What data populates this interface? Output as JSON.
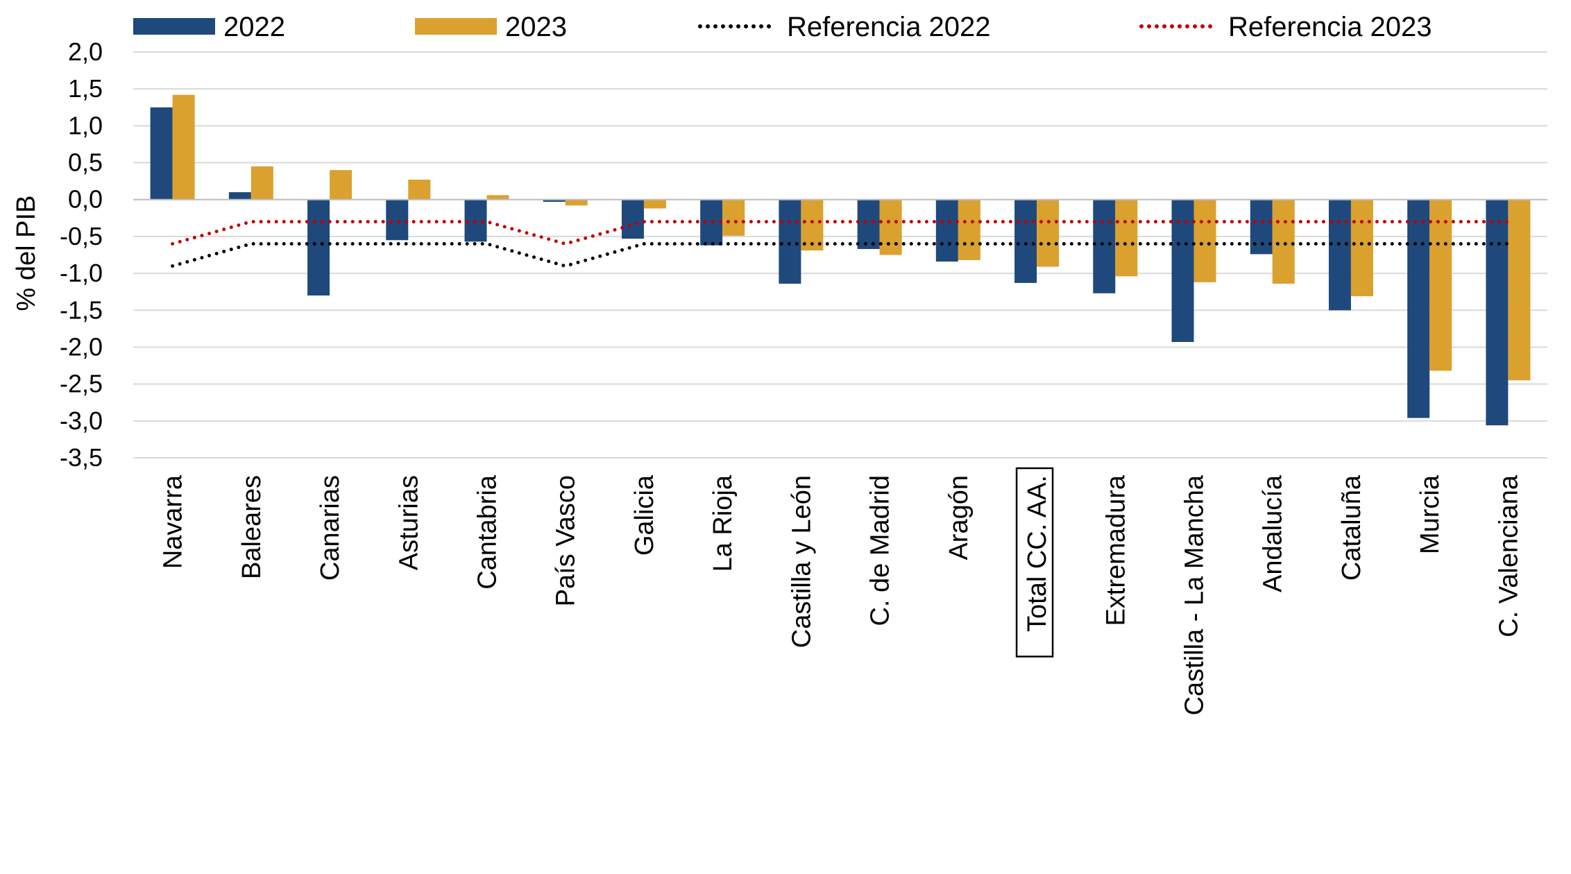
{
  "chart_data": {
    "type": "bar",
    "ylabel": "% del PIB",
    "ylim": [
      -3.5,
      2.0
    ],
    "ytick_step": 0.5,
    "yticks": [
      "2,0",
      "1,5",
      "1,0",
      "0,5",
      "0,0",
      "-0,5",
      "-1,0",
      "-1,5",
      "-2,0",
      "-2,5",
      "-3,0",
      "-3,5"
    ],
    "grid": true,
    "legend_position": "top",
    "categories": [
      "Navarra",
      "Baleares",
      "Canarias",
      "Asturias",
      "Cantabria",
      "País Vasco",
      "Galicia",
      "La Rioja",
      "Castilla y León",
      "C. de Madrid",
      "Aragón",
      "Total CC. AA.",
      "Extremadura",
      "Castilla - La Mancha",
      "Andalucía",
      "Cataluña",
      "Murcia",
      "C. Valenciana"
    ],
    "highlighted_category": "Total CC. AA.",
    "series": [
      {
        "name": "2022",
        "kind": "bar",
        "color": "#1f497d",
        "values": [
          1.25,
          0.1,
          -1.3,
          -0.55,
          -0.57,
          -0.03,
          -0.53,
          -0.62,
          -1.14,
          -0.67,
          -0.84,
          -1.13,
          -1.27,
          -1.93,
          -0.74,
          -1.5,
          -2.96,
          -3.06
        ]
      },
      {
        "name": "2023",
        "kind": "bar",
        "color": "#daa12f",
        "values": [
          1.42,
          0.45,
          0.4,
          0.27,
          0.06,
          -0.08,
          -0.12,
          -0.49,
          -0.69,
          -0.75,
          -0.82,
          -0.91,
          -1.04,
          -1.12,
          -1.14,
          -1.31,
          -2.32,
          -2.45
        ]
      },
      {
        "name": "Referencia 2022",
        "kind": "line",
        "style": "dotted",
        "color": "#000000",
        "values": [
          -0.9,
          -0.6,
          -0.6,
          -0.6,
          -0.6,
          -0.9,
          -0.6,
          -0.6,
          -0.6,
          -0.6,
          -0.6,
          -0.6,
          -0.6,
          -0.6,
          -0.6,
          -0.6,
          -0.6,
          -0.6
        ]
      },
      {
        "name": "Referencia 2023",
        "kind": "line",
        "style": "dotted",
        "color": "#c00000",
        "values": [
          -0.6,
          -0.3,
          -0.3,
          -0.3,
          -0.3,
          -0.6,
          -0.3,
          -0.3,
          -0.3,
          -0.3,
          -0.3,
          -0.3,
          -0.3,
          -0.3,
          -0.3,
          -0.3,
          -0.3,
          -0.3
        ]
      }
    ]
  }
}
